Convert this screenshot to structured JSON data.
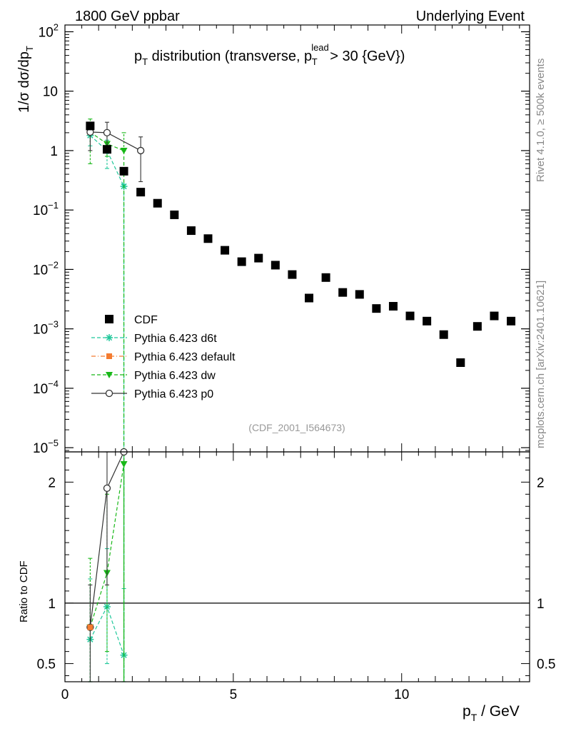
{
  "header": {
    "left": "1800 GeV ppbar",
    "right": "Underlying Event"
  },
  "side_labels": {
    "rivet": "Rivet 4.1.0, ≥ 500k events",
    "mcplots": "mcplots.cern.ch [arXiv:2401.10621]"
  },
  "colors": {
    "cdf": "#000000",
    "d6t": "#1fc79a",
    "default": "#f47c30",
    "dw": "#18b818",
    "p0": "#333333"
  },
  "chart_data": [
    {
      "type": "scatter",
      "panel": "main",
      "title": "p_T distribution (transverse, p_T^lead > 30 {GeV})",
      "title_parts": {
        "p": "p",
        "T": "T",
        "middle": " distribution (transverse, p",
        "lead": "lead",
        "end": " > 30 {GeV})"
      },
      "ylabel": "1/σ  dσ/dp_T",
      "ylabel_parts": {
        "main": "1/σ  dσ/dp",
        "sub": "T"
      },
      "yscale": "log",
      "ylim": [
        8.5e-06,
        130
      ],
      "xlim": [
        0,
        13.8
      ],
      "y_ticks": [
        {
          "v": 1e-05,
          "base": "10",
          "exp": "−5"
        },
        {
          "v": 0.0001,
          "base": "10",
          "exp": "−4"
        },
        {
          "v": 0.001,
          "base": "10",
          "exp": "−3"
        },
        {
          "v": 0.01,
          "base": "10",
          "exp": "−2"
        },
        {
          "v": 0.1,
          "base": "10",
          "exp": "−1"
        },
        {
          "v": 1,
          "base": "1",
          "exp": ""
        },
        {
          "v": 10,
          "base": "10",
          "exp": ""
        },
        {
          "v": 100,
          "base": "10",
          "exp": "2"
        }
      ],
      "watermark": "(CDF_2001_I564673)",
      "legend_position": "lower-left",
      "series": [
        {
          "key": "cdf",
          "name": "CDF",
          "marker": "square",
          "line": "none",
          "x": [
            0.75,
            1.25,
            1.75,
            2.25,
            2.75,
            3.25,
            3.75,
            4.25,
            4.75,
            5.25,
            5.75,
            6.25,
            6.75,
            7.25,
            7.75,
            8.25,
            8.75,
            9.25,
            9.75,
            10.25,
            10.75,
            11.25,
            11.75,
            12.25,
            12.75,
            13.25
          ],
          "y": [
            2.6,
            1.05,
            0.45,
            0.2,
            0.13,
            0.083,
            0.045,
            0.033,
            0.021,
            0.0135,
            0.0155,
            0.0118,
            0.0082,
            0.0033,
            0.0073,
            0.0041,
            0.0038,
            0.0022,
            0.0024,
            0.00165,
            0.00135,
            0.0008,
            0.00027,
            0.0011,
            0.00165,
            0.00135
          ]
        },
        {
          "key": "d6t",
          "name": "Pythia 6.423 d6t",
          "marker": "star",
          "line": "dashed",
          "x": [
            0.75,
            1.25,
            1.75
          ],
          "y": [
            1.8,
            1.0,
            0.25
          ],
          "yerr_low": [
            1.2,
            0.5,
            0.25
          ],
          "yerr_high": [
            3.0,
            1.5,
            0.27
          ]
        },
        {
          "key": "default",
          "name": "Pythia 6.423 default",
          "marker": "square-small",
          "line": "dashdot",
          "x": [
            0.75
          ],
          "y": [
            2.05
          ]
        },
        {
          "key": "dw",
          "name": "Pythia 6.423 dw",
          "marker": "triangle-down",
          "line": "dashed",
          "x": [
            0.75,
            1.25,
            1.75
          ],
          "y": [
            2.05,
            1.3,
            1.0
          ],
          "yerr_low": [
            0.6,
            0.8,
            1.0
          ],
          "yerr_high": [
            3.4,
            1.9,
            2.0
          ]
        },
        {
          "key": "p0",
          "name": "Pythia 6.423 p0",
          "marker": "circle-open",
          "line": "solid",
          "x": [
            0.75,
            1.25,
            2.25
          ],
          "y": [
            2.05,
            2.0,
            1.0
          ],
          "yerr_low": [
            1.0,
            1.1,
            0.3
          ],
          "yerr_high": [
            3.0,
            3.0,
            1.7
          ]
        }
      ]
    },
    {
      "type": "line",
      "panel": "ratio",
      "ylabel": "Ratio to CDF",
      "xlabel": "p_T / GeV",
      "xlabel_parts": {
        "p": "p",
        "sub": "T",
        "rest": " / GeV"
      },
      "ylim": [
        0.35,
        2.25
      ],
      "xlim": [
        0,
        13.8
      ],
      "y_ticks": [
        0.5,
        1,
        2
      ],
      "y_tick_labels": [
        "0.5",
        "1",
        "2"
      ],
      "x_ticks": [
        0,
        5,
        10
      ],
      "x_tick_labels": [
        "0",
        "5",
        "10"
      ],
      "reference": 1,
      "series": [
        {
          "key": "d6t",
          "x": [
            0.75,
            1.25,
            1.75
          ],
          "y": [
            0.7,
            0.97,
            0.57
          ],
          "yerr_low": [
            0.35,
            0.5,
            0.35
          ],
          "yerr_high": [
            1.2,
            1.45,
            1.12
          ]
        },
        {
          "key": "dw",
          "x": [
            0.75,
            1.25,
            1.75
          ],
          "y": [
            0.8,
            1.25,
            2.15
          ],
          "yerr_low": [
            0.35,
            0.6,
            0.35
          ],
          "yerr_high": [
            1.37,
            1.9,
            2.25
          ]
        },
        {
          "key": "p0",
          "x": [
            0.75,
            1.25,
            1.75
          ],
          "y": [
            0.8,
            1.95,
            2.25
          ],
          "yerr_low": [
            0.35,
            1.15,
            2.25
          ],
          "yerr_high": [
            1.15,
            2.25,
            2.25
          ]
        },
        {
          "key": "default",
          "x": [
            0.75
          ],
          "y": [
            0.8
          ]
        }
      ]
    }
  ]
}
